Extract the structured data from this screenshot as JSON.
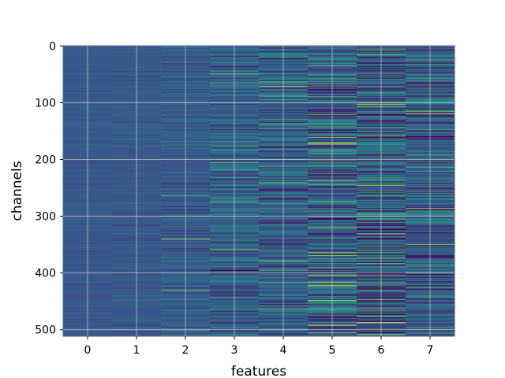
{
  "chart_data": {
    "type": "heatmap",
    "title": "",
    "xlabel": "features",
    "ylabel": "channels",
    "x_ticks": [
      "0",
      "1",
      "2",
      "3",
      "4",
      "5",
      "6",
      "7"
    ],
    "y_ticks": [
      "0",
      "100",
      "200",
      "300",
      "400",
      "500"
    ],
    "x_categories": [
      0,
      1,
      2,
      3,
      4,
      5,
      6,
      7
    ],
    "y_range": [
      0,
      511
    ],
    "n_rows": 512,
    "n_cols": 8,
    "grid": true,
    "colormap": "viridis",
    "column_variability": [
      0.05,
      0.07,
      0.14,
      0.26,
      0.31,
      0.42,
      0.48,
      0.36
    ],
    "column_mean": [
      0.28,
      0.28,
      0.29,
      0.3,
      0.3,
      0.29,
      0.28,
      0.29
    ],
    "colors": {
      "low": "#440154",
      "mid_low": "#3b528b",
      "mid": "#21918c",
      "mid_high": "#5ec962",
      "high": "#fde725",
      "frame": "#5a6a8a",
      "grid": "#d9d9d9"
    }
  }
}
